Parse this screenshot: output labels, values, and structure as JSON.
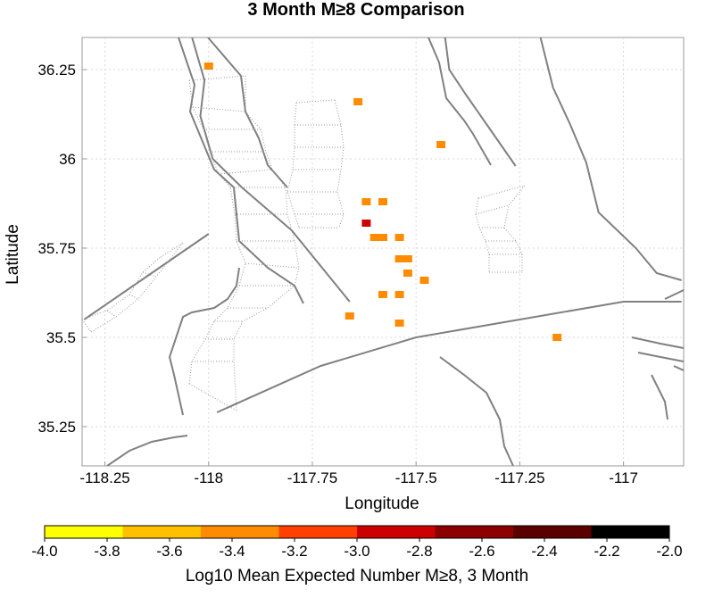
{
  "chart_data": {
    "type": "scatter",
    "title": "3 Month M≥8 Comparison",
    "xlabel": "Longitude",
    "ylabel": "Latitude",
    "xlim": [
      -118.305,
      -117.885
    ],
    "ylim": [
      35.14,
      36.34
    ],
    "xlim_full": [
      -118.305,
      -116.855
    ],
    "x_ticks": [
      -118.25,
      -118,
      -117.75,
      -117.5,
      -117.25,
      -117
    ],
    "x_tick_labels": [
      "-118.25",
      "-118",
      "-117.75",
      "-117.5",
      "-117.25",
      "-117"
    ],
    "y_ticks": [
      35.25,
      35.5,
      35.75,
      36,
      36.25
    ],
    "y_tick_labels": [
      "35.25",
      "35.5",
      "35.75",
      "36",
      "36.25"
    ],
    "grid": true,
    "points": [
      {
        "lon": -118.0,
        "lat": 36.26,
        "value": -3.45
      },
      {
        "lon": -117.64,
        "lat": 36.16,
        "value": -3.45
      },
      {
        "lon": -117.44,
        "lat": 36.04,
        "value": -3.45
      },
      {
        "lon": -117.62,
        "lat": 35.88,
        "value": -3.45
      },
      {
        "lon": -117.58,
        "lat": 35.88,
        "value": -3.45
      },
      {
        "lon": -117.62,
        "lat": 35.82,
        "value": -2.9
      },
      {
        "lon": -117.6,
        "lat": 35.78,
        "value": -3.45
      },
      {
        "lon": -117.58,
        "lat": 35.78,
        "value": -3.45
      },
      {
        "lon": -117.54,
        "lat": 35.78,
        "value": -3.45
      },
      {
        "lon": -117.54,
        "lat": 35.72,
        "value": -3.45
      },
      {
        "lon": -117.52,
        "lat": 35.72,
        "value": -3.45
      },
      {
        "lon": -117.52,
        "lat": 35.68,
        "value": -3.45
      },
      {
        "lon": -117.48,
        "lat": 35.66,
        "value": -3.45
      },
      {
        "lon": -117.58,
        "lat": 35.62,
        "value": -3.45
      },
      {
        "lon": -117.54,
        "lat": 35.62,
        "value": -3.45
      },
      {
        "lon": -117.66,
        "lat": 35.56,
        "value": -3.45
      },
      {
        "lon": -117.54,
        "lat": 35.54,
        "value": -3.45
      },
      {
        "lon": -117.16,
        "lat": 35.5,
        "value": -3.45
      }
    ],
    "colorbar": {
      "label": "Log10 Mean Expected Number M≥8, 3 Month",
      "min": -4.0,
      "max": -2.0,
      "ticks": [
        -4.0,
        -3.8,
        -3.6,
        -3.4,
        -3.2,
        -3.0,
        -2.8,
        -2.6,
        -2.4,
        -2.2,
        -2.0
      ],
      "tick_labels": [
        "-4.0",
        "-3.8",
        "-3.6",
        "-3.4",
        "-3.2",
        "-3.0",
        "-2.8",
        "-2.6",
        "-2.4",
        "-2.2",
        "-2.0"
      ],
      "bins": [
        {
          "from": -4.0,
          "to": -3.75,
          "color": "#ffff00"
        },
        {
          "from": -3.75,
          "to": -3.5,
          "color": "#ffc000"
        },
        {
          "from": -3.5,
          "to": -3.25,
          "color": "#ff8c00"
        },
        {
          "from": -3.25,
          "to": -3.0,
          "color": "#ff4000"
        },
        {
          "from": -3.0,
          "to": -2.75,
          "color": "#cc0000"
        },
        {
          "from": -2.75,
          "to": -2.5,
          "color": "#8c0000"
        },
        {
          "from": -2.5,
          "to": -2.25,
          "color": "#5a0000"
        },
        {
          "from": -2.25,
          "to": -2.0,
          "color": "#000000"
        }
      ]
    },
    "fault_traces": [
      [
        [
          -118.3,
          35.55
        ],
        [
          -118.0,
          35.79
        ]
      ],
      [
        [
          -118.04,
          36.34
        ],
        [
          -118.01,
          36.22
        ],
        [
          -118.02,
          36.12
        ],
        [
          -117.99,
          36.0
        ],
        [
          -117.92,
          35.92
        ],
        [
          -117.8,
          35.8
        ],
        [
          -117.66,
          35.6
        ]
      ],
      [
        [
          -117.98,
          35.29
        ],
        [
          -117.73,
          35.42
        ],
        [
          -117.5,
          35.5
        ],
        [
          -117.0,
          35.6
        ],
        [
          -116.86,
          35.6
        ]
      ],
      [
        [
          -117.43,
          36.34
        ],
        [
          -117.42,
          36.25
        ],
        [
          -117.38,
          36.18
        ],
        [
          -117.32,
          36.08
        ],
        [
          -117.26,
          35.98
        ]
      ],
      [
        [
          -117.2,
          36.34
        ],
        [
          -117.17,
          36.2
        ],
        [
          -117.13,
          36.1
        ],
        [
          -117.09,
          35.99
        ],
        [
          -117.06,
          35.85
        ],
        [
          -116.97,
          35.75
        ],
        [
          -116.92,
          35.68
        ],
        [
          -116.86,
          35.66
        ]
      ]
    ]
  }
}
